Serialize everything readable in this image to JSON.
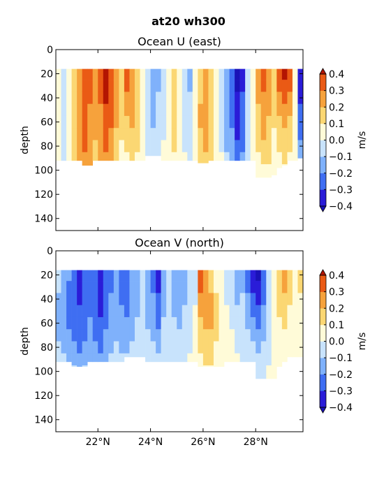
{
  "figure_title": "at20 wh300",
  "chart_data": [
    {
      "type": "heatmap",
      "title": "Ocean U (east)",
      "xlabel": "",
      "ylabel": "depth",
      "x_ticks": [
        "22°N",
        "24°N",
        "26°N",
        "28°N"
      ],
      "x_tick_values": [
        22,
        24,
        26,
        28
      ],
      "xlim": [
        20.4,
        29.8
      ],
      "y_ticks": [
        0,
        20,
        40,
        60,
        80,
        100,
        120,
        140
      ],
      "ylim": [
        150,
        0
      ],
      "colorbar": {
        "label": "m/s",
        "levels": [
          -0.4,
          -0.3,
          -0.2,
          -0.1,
          0.0,
          0.1,
          0.2,
          0.3,
          0.4
        ],
        "tick_labels": [
          "−0.4",
          "−0.3",
          "−0.2",
          "−0.1",
          "0.0",
          "0.1",
          "0.2",
          "0.3",
          "0.4"
        ]
      },
      "x": [
        20.5,
        20.7,
        20.9,
        21.1,
        21.3,
        21.5,
        21.7,
        21.9,
        22.1,
        22.3,
        22.5,
        22.7,
        22.9,
        23.1,
        23.3,
        23.5,
        23.7,
        23.9,
        24.1,
        24.3,
        24.5,
        24.7,
        24.9,
        25.1,
        25.3,
        25.5,
        25.7,
        25.9,
        26.1,
        26.3,
        26.5,
        26.7,
        26.9,
        27.1,
        27.3,
        27.5,
        27.7,
        27.9,
        28.1,
        28.3,
        28.5,
        28.7,
        28.9,
        29.1,
        29.3,
        29.5,
        29.7
      ],
      "y": [
        20,
        30,
        40,
        50,
        60,
        70,
        80,
        90,
        100
      ],
      "bottom_depth": [
        92,
        92,
        92,
        92,
        92,
        96,
        96,
        92,
        92,
        92,
        92,
        92,
        92,
        92,
        92,
        92,
        92,
        88,
        88,
        88,
        92,
        92,
        92,
        92,
        92,
        92,
        92,
        94,
        94,
        92,
        92,
        92,
        92,
        92,
        92,
        92,
        92,
        92,
        106,
        106,
        106,
        104,
        98,
        96,
        92,
        92,
        90
      ],
      "values": [
        [
          0.0,
          -0.1,
          0.05,
          0.15,
          0.25,
          0.35,
          0.3,
          0.2,
          0.3,
          0.45,
          0.35,
          0.2,
          0.1,
          0.35,
          0.25,
          0.15,
          0.05,
          -0.1,
          -0.2,
          -0.15,
          -0.05,
          0.05,
          0.15,
          0.05,
          -0.05,
          -0.15,
          0.05,
          0.15,
          0.2,
          0.1,
          0.0,
          -0.1,
          -0.2,
          -0.3,
          -0.45,
          -0.35,
          -0.1,
          0.0,
          0.2,
          0.3,
          0.2,
          0.1,
          0.3,
          0.45,
          0.35,
          0.0,
          -0.4
        ],
        [
          0.0,
          -0.1,
          0.05,
          0.15,
          0.25,
          0.35,
          0.3,
          0.2,
          0.3,
          0.45,
          0.35,
          0.2,
          0.1,
          0.3,
          0.2,
          0.15,
          0.05,
          -0.1,
          -0.2,
          -0.15,
          -0.05,
          0.05,
          0.15,
          0.05,
          -0.05,
          -0.15,
          0.05,
          0.15,
          0.2,
          0.1,
          0.0,
          -0.1,
          -0.2,
          -0.3,
          -0.45,
          -0.35,
          -0.1,
          0.0,
          0.2,
          0.3,
          0.25,
          0.1,
          0.3,
          0.35,
          0.3,
          0.0,
          -0.4
        ],
        [
          0.0,
          -0.1,
          0.05,
          0.15,
          0.25,
          0.3,
          0.3,
          0.25,
          0.3,
          0.4,
          0.3,
          0.2,
          0.1,
          0.25,
          0.2,
          0.1,
          0.05,
          -0.1,
          -0.15,
          -0.1,
          -0.05,
          0.05,
          0.1,
          0.05,
          -0.05,
          -0.1,
          0.05,
          0.15,
          0.2,
          0.1,
          0.0,
          -0.1,
          -0.2,
          -0.3,
          -0.4,
          -0.3,
          -0.1,
          0.0,
          0.2,
          0.25,
          0.2,
          0.1,
          0.25,
          0.3,
          0.25,
          0.0,
          -0.35
        ],
        [
          0.0,
          -0.1,
          0.05,
          0.15,
          0.25,
          0.3,
          0.25,
          0.2,
          0.25,
          0.35,
          0.3,
          0.2,
          0.1,
          0.2,
          0.25,
          0.15,
          0.05,
          -0.1,
          -0.15,
          -0.1,
          -0.05,
          0.05,
          0.1,
          0.05,
          -0.05,
          -0.1,
          0.05,
          0.2,
          0.25,
          0.15,
          0.05,
          -0.1,
          -0.2,
          -0.25,
          -0.4,
          -0.3,
          -0.1,
          0.0,
          0.15,
          0.25,
          0.2,
          0.1,
          0.2,
          0.25,
          0.2,
          0.0,
          -0.3
        ],
        [
          0.0,
          -0.1,
          0.05,
          0.15,
          0.25,
          0.3,
          0.25,
          0.2,
          0.25,
          0.35,
          0.3,
          0.2,
          0.1,
          0.15,
          0.2,
          0.15,
          0.05,
          -0.1,
          -0.15,
          -0.1,
          -0.05,
          0.05,
          0.1,
          0.05,
          -0.05,
          -0.1,
          0.05,
          0.2,
          0.25,
          0.15,
          0.05,
          -0.1,
          -0.15,
          -0.25,
          -0.35,
          -0.3,
          -0.1,
          0.0,
          0.15,
          0.2,
          0.15,
          0.1,
          0.15,
          0.2,
          0.15,
          0.0,
          -0.3
        ],
        [
          0.0,
          -0.05,
          0.05,
          0.15,
          0.2,
          0.3,
          0.25,
          0.2,
          0.25,
          0.3,
          0.25,
          0.15,
          0.1,
          0.1,
          0.15,
          0.1,
          0.05,
          -0.05,
          -0.1,
          -0.1,
          -0.05,
          0.05,
          0.1,
          0.05,
          -0.05,
          -0.1,
          0.05,
          0.15,
          0.2,
          0.15,
          0.05,
          -0.05,
          -0.15,
          -0.2,
          -0.35,
          -0.25,
          -0.1,
          0.0,
          0.1,
          0.2,
          0.15,
          0.05,
          0.1,
          0.15,
          0.1,
          0.0,
          -0.25
        ],
        [
          0.0,
          -0.05,
          0.05,
          0.15,
          0.2,
          0.3,
          0.25,
          0.15,
          0.2,
          0.3,
          0.25,
          0.15,
          0.05,
          0.1,
          0.1,
          0.1,
          0.05,
          -0.05,
          -0.1,
          -0.05,
          0.0,
          0.05,
          0.1,
          0.05,
          -0.05,
          -0.1,
          0.05,
          0.15,
          0.2,
          0.15,
          0.05,
          -0.05,
          -0.15,
          -0.2,
          -0.3,
          -0.25,
          -0.05,
          0.0,
          0.1,
          0.15,
          0.1,
          0.05,
          0.1,
          0.1,
          0.1,
          0.0,
          -0.2
        ],
        [
          0.0,
          -0.05,
          0.05,
          0.1,
          0.2,
          0.25,
          0.2,
          0.15,
          0.2,
          0.25,
          0.2,
          0.1,
          0.05,
          0.05,
          0.1,
          0.05,
          0.0,
          -0.05,
          -0.05,
          -0.05,
          0.0,
          0.05,
          0.05,
          0.05,
          0.0,
          -0.05,
          0.05,
          0.1,
          0.15,
          0.1,
          0.05,
          0.0,
          -0.1,
          -0.15,
          -0.25,
          -0.2,
          -0.05,
          0.0,
          0.05,
          0.1,
          0.1,
          0.05,
          0.05,
          0.1,
          0.05,
          0.0,
          -0.15
        ],
        [
          0.0,
          0.0,
          0.05,
          0.1,
          0.15,
          0.2,
          0.2,
          0.1,
          0.15,
          0.2,
          0.15,
          0.1,
          0.05,
          0.05,
          0.05,
          0.05,
          0.0,
          0.0,
          0.0,
          0.0,
          0.0,
          0.05,
          0.05,
          0.0,
          0.0,
          0.0,
          0.05,
          0.1,
          0.1,
          0.1,
          0.05,
          0.0,
          -0.05,
          -0.1,
          -0.2,
          -0.15,
          0.0,
          0.0,
          0.05,
          0.05,
          0.05,
          0.05,
          0.05,
          0.05,
          0.05,
          0.0,
          -0.1
        ]
      ]
    },
    {
      "type": "heatmap",
      "title": "Ocean V (north)",
      "xlabel": "",
      "ylabel": "depth",
      "x_ticks": [
        "22°N",
        "24°N",
        "26°N",
        "28°N"
      ],
      "x_tick_values": [
        22,
        24,
        26,
        28
      ],
      "xlim": [
        20.4,
        29.8
      ],
      "y_ticks": [
        0,
        20,
        40,
        60,
        80,
        100,
        120,
        140
      ],
      "ylim": [
        150,
        0
      ],
      "colorbar": {
        "label": "m/s",
        "levels": [
          -0.4,
          -0.3,
          -0.2,
          -0.1,
          0.0,
          0.1,
          0.2,
          0.3,
          0.4
        ],
        "tick_labels": [
          "−0.4",
          "−0.3",
          "−0.2",
          "−0.1",
          "0.0",
          "0.1",
          "0.2",
          "0.3",
          "0.4"
        ]
      },
      "x": [
        20.5,
        20.7,
        20.9,
        21.1,
        21.3,
        21.5,
        21.7,
        21.9,
        22.1,
        22.3,
        22.5,
        22.7,
        22.9,
        23.1,
        23.3,
        23.5,
        23.7,
        23.9,
        24.1,
        24.3,
        24.5,
        24.7,
        24.9,
        25.1,
        25.3,
        25.5,
        25.7,
        25.9,
        26.1,
        26.3,
        26.5,
        26.7,
        26.9,
        27.1,
        27.3,
        27.5,
        27.7,
        27.9,
        28.1,
        28.3,
        28.5,
        28.7,
        28.9,
        29.1,
        29.3,
        29.5,
        29.7
      ],
      "y": [
        20,
        30,
        40,
        50,
        60,
        70,
        80,
        90,
        100
      ],
      "bottom_depth": [
        92,
        92,
        92,
        96,
        96,
        96,
        92,
        92,
        92,
        92,
        92,
        92,
        92,
        88,
        88,
        88,
        88,
        92,
        92,
        92,
        92,
        92,
        92,
        92,
        92,
        92,
        92,
        96,
        96,
        96,
        96,
        96,
        92,
        92,
        92,
        92,
        92,
        92,
        106,
        106,
        106,
        106,
        96,
        92,
        88,
        88,
        88
      ],
      "values": [
        [
          -0.1,
          -0.15,
          -0.2,
          -0.3,
          -0.35,
          -0.3,
          -0.25,
          -0.3,
          -0.35,
          -0.3,
          -0.25,
          -0.2,
          -0.25,
          -0.3,
          -0.2,
          -0.15,
          -0.1,
          -0.15,
          -0.25,
          -0.35,
          -0.15,
          -0.1,
          -0.15,
          -0.2,
          -0.15,
          -0.1,
          -0.05,
          0.3,
          0.25,
          0.15,
          0.05,
          0.0,
          -0.05,
          -0.1,
          -0.2,
          -0.15,
          -0.25,
          -0.35,
          -0.45,
          -0.3,
          -0.1,
          0.05,
          0.15,
          0.2,
          0.1,
          0.05,
          0.1
        ],
        [
          -0.1,
          -0.15,
          -0.25,
          -0.3,
          -0.35,
          -0.3,
          -0.25,
          -0.3,
          -0.35,
          -0.3,
          -0.25,
          -0.2,
          -0.25,
          -0.3,
          -0.2,
          -0.15,
          -0.1,
          -0.15,
          -0.25,
          -0.35,
          -0.15,
          -0.1,
          -0.15,
          -0.2,
          -0.15,
          -0.1,
          -0.05,
          0.3,
          0.25,
          0.15,
          0.05,
          0.0,
          -0.05,
          -0.1,
          -0.15,
          -0.15,
          -0.25,
          -0.35,
          -0.4,
          -0.3,
          -0.1,
          0.05,
          0.15,
          0.2,
          0.1,
          0.05,
          0.1
        ],
        [
          -0.15,
          -0.2,
          -0.25,
          -0.3,
          -0.35,
          -0.3,
          -0.25,
          -0.3,
          -0.35,
          -0.3,
          -0.2,
          -0.2,
          -0.25,
          -0.3,
          -0.2,
          -0.15,
          -0.1,
          -0.15,
          -0.2,
          -0.3,
          -0.15,
          -0.1,
          -0.15,
          -0.2,
          -0.15,
          -0.1,
          -0.05,
          0.25,
          0.25,
          0.2,
          0.1,
          0.0,
          -0.05,
          -0.1,
          -0.15,
          -0.1,
          -0.2,
          -0.3,
          -0.35,
          -0.25,
          -0.1,
          0.05,
          0.1,
          0.15,
          0.1,
          0.05,
          0.05
        ],
        [
          -0.15,
          -0.2,
          -0.25,
          -0.3,
          -0.3,
          -0.3,
          -0.25,
          -0.3,
          -0.35,
          -0.3,
          -0.2,
          -0.15,
          -0.2,
          -0.25,
          -0.2,
          -0.15,
          -0.1,
          -0.15,
          -0.2,
          -0.3,
          -0.15,
          -0.1,
          -0.15,
          -0.15,
          -0.1,
          -0.1,
          0.0,
          0.2,
          0.25,
          0.2,
          0.1,
          0.05,
          0.0,
          -0.05,
          -0.1,
          -0.1,
          -0.15,
          -0.25,
          -0.3,
          -0.2,
          -0.1,
          0.0,
          0.1,
          0.1,
          0.05,
          0.05,
          0.05
        ],
        [
          -0.15,
          -0.2,
          -0.25,
          -0.25,
          -0.3,
          -0.25,
          -0.2,
          -0.25,
          -0.3,
          -0.25,
          -0.2,
          -0.15,
          -0.2,
          -0.2,
          -0.15,
          -0.1,
          -0.1,
          -0.15,
          -0.15,
          -0.25,
          -0.1,
          -0.1,
          -0.1,
          -0.15,
          -0.1,
          -0.05,
          0.0,
          0.15,
          0.2,
          0.2,
          0.1,
          0.05,
          0.0,
          -0.05,
          -0.1,
          -0.1,
          -0.15,
          -0.2,
          -0.25,
          -0.2,
          -0.1,
          0.0,
          0.05,
          0.1,
          0.05,
          0.0,
          0.05
        ],
        [
          -0.15,
          -0.2,
          -0.2,
          -0.25,
          -0.25,
          -0.25,
          -0.2,
          -0.25,
          -0.25,
          -0.2,
          -0.15,
          -0.15,
          -0.15,
          -0.15,
          -0.15,
          -0.1,
          -0.1,
          -0.1,
          -0.15,
          -0.2,
          -0.1,
          -0.05,
          -0.1,
          -0.1,
          -0.1,
          -0.05,
          0.0,
          0.1,
          0.15,
          0.15,
          0.1,
          0.05,
          0.0,
          0.0,
          -0.05,
          -0.05,
          -0.1,
          -0.15,
          -0.2,
          -0.15,
          -0.05,
          0.0,
          0.05,
          0.05,
          0.05,
          0.0,
          0.0
        ],
        [
          -0.1,
          -0.15,
          -0.2,
          -0.2,
          -0.25,
          -0.2,
          -0.15,
          -0.2,
          -0.25,
          -0.2,
          -0.15,
          -0.1,
          -0.15,
          -0.15,
          -0.1,
          -0.1,
          -0.05,
          -0.1,
          -0.1,
          -0.15,
          -0.1,
          -0.05,
          -0.05,
          -0.1,
          -0.05,
          -0.05,
          0.0,
          0.1,
          0.1,
          0.1,
          0.05,
          0.05,
          0.0,
          0.0,
          -0.05,
          -0.05,
          -0.1,
          -0.1,
          -0.15,
          -0.1,
          -0.05,
          0.0,
          0.05,
          0.05,
          0.0,
          0.0,
          0.0
        ],
        [
          -0.1,
          -0.1,
          -0.15,
          -0.15,
          -0.2,
          -0.15,
          -0.15,
          -0.15,
          -0.2,
          -0.15,
          -0.1,
          -0.1,
          -0.1,
          -0.1,
          -0.1,
          -0.05,
          -0.05,
          -0.05,
          -0.1,
          -0.1,
          -0.05,
          -0.05,
          -0.05,
          -0.05,
          -0.05,
          0.0,
          0.0,
          0.05,
          0.1,
          0.1,
          0.05,
          0.0,
          0.0,
          0.0,
          0.0,
          -0.05,
          -0.05,
          -0.1,
          -0.1,
          -0.1,
          -0.05,
          0.0,
          0.0,
          0.05,
          0.0,
          0.0,
          0.0
        ],
        [
          -0.05,
          -0.1,
          -0.1,
          -0.1,
          -0.15,
          -0.1,
          -0.1,
          -0.1,
          -0.15,
          -0.1,
          -0.1,
          -0.05,
          -0.05,
          -0.05,
          -0.05,
          -0.05,
          0.0,
          -0.05,
          -0.05,
          -0.05,
          -0.05,
          0.0,
          0.0,
          -0.05,
          0.0,
          0.0,
          0.0,
          0.05,
          0.05,
          0.05,
          0.05,
          0.0,
          0.0,
          0.0,
          0.0,
          0.0,
          -0.05,
          -0.05,
          -0.1,
          -0.05,
          0.0,
          0.0,
          0.0,
          0.0,
          0.0,
          0.0,
          0.0
        ]
      ]
    }
  ],
  "colormap": [
    "#2a1cd8",
    "#3f6ef2",
    "#7fb1fb",
    "#c8e3fc",
    "#fffbd8",
    "#fbd773",
    "#f6a23c",
    "#ea5a15"
  ],
  "colormap_over": "#b31502",
  "colormap_under": "#1a12b8"
}
